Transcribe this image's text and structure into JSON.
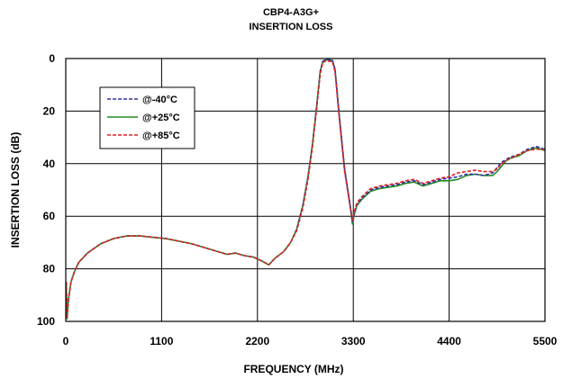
{
  "chart_data": {
    "type": "line",
    "title": "CBP4-A3G+",
    "subtitle": "INSERTION LOSS",
    "xlabel": "FREQUENCY (MHz)",
    "ylabel": "INSERTION LOSS (dB)",
    "xlim": [
      0,
      5500
    ],
    "ylim": [
      100,
      0
    ],
    "y_inverted": true,
    "x_ticks": [
      "0",
      "1100",
      "2200",
      "3300",
      "4400",
      "5500"
    ],
    "y_ticks": [
      "0",
      "20",
      "40",
      "60",
      "80",
      "100"
    ],
    "grid": true,
    "legend_position": "upper-left",
    "series": [
      {
        "name": "@-40°C",
        "color": "#3333aa",
        "dash": "dashed",
        "x": [
          5,
          15,
          30,
          60,
          100,
          150,
          250,
          400,
          550,
          700,
          850,
          1000,
          1150,
          1300,
          1450,
          1600,
          1750,
          1850,
          1950,
          2050,
          2150,
          2250,
          2330,
          2400,
          2500,
          2580,
          2650,
          2720,
          2780,
          2830,
          2880,
          2920,
          2950,
          2980,
          3020,
          3060,
          3090,
          3140,
          3200,
          3260,
          3290,
          3310,
          3340,
          3400,
          3500,
          3600,
          3700,
          3800,
          3900,
          4000,
          4100,
          4200,
          4300,
          4400,
          4500,
          4600,
          4700,
          4800,
          4900,
          4950,
          5000,
          5050,
          5100,
          5200,
          5300,
          5400,
          5500
        ],
        "y": [
          85,
          99,
          92,
          85,
          81,
          77.5,
          74,
          70.5,
          68.5,
          67.5,
          67.5,
          68,
          68.5,
          69.5,
          70.5,
          72,
          73.5,
          74.5,
          74,
          75,
          75.5,
          77,
          78.5,
          76,
          73.5,
          70,
          65,
          56,
          45,
          33,
          18,
          5,
          1,
          0.5,
          0.5,
          0.7,
          4,
          22,
          42,
          55,
          62,
          59,
          55.5,
          53,
          50,
          49,
          48.5,
          48,
          47,
          46.5,
          48,
          47,
          46,
          45.5,
          45,
          44,
          44,
          44.5,
          43.5,
          41.5,
          39.5,
          38.5,
          37.5,
          36.5,
          34.5,
          33.5,
          34.5
        ]
      },
      {
        "name": "@+25°C",
        "color": "#228b22",
        "dash": "solid",
        "x": [
          5,
          15,
          30,
          60,
          100,
          150,
          250,
          400,
          550,
          700,
          850,
          1000,
          1150,
          1300,
          1450,
          1600,
          1750,
          1850,
          1950,
          2050,
          2150,
          2250,
          2330,
          2400,
          2500,
          2580,
          2650,
          2720,
          2780,
          2830,
          2880,
          2920,
          2950,
          2980,
          3020,
          3060,
          3090,
          3140,
          3200,
          3260,
          3290,
          3310,
          3340,
          3400,
          3500,
          3600,
          3700,
          3800,
          3900,
          4000,
          4100,
          4200,
          4300,
          4400,
          4500,
          4600,
          4700,
          4800,
          4900,
          4950,
          5000,
          5050,
          5100,
          5200,
          5300,
          5400,
          5500
        ],
        "y": [
          85,
          99,
          92,
          85,
          81,
          77.5,
          74,
          70.5,
          68.5,
          67.5,
          67.5,
          68,
          68.5,
          69.5,
          70.5,
          72,
          73.5,
          74.5,
          74,
          75,
          75.5,
          77,
          78.5,
          76,
          73.5,
          70,
          65,
          56,
          45,
          33,
          18,
          5,
          1,
          0.5,
          0.5,
          0.7,
          4,
          22,
          42,
          55,
          63,
          59.5,
          56,
          53.5,
          50.5,
          49.5,
          49,
          48.5,
          47.5,
          47,
          48.5,
          47.5,
          46.5,
          46.5,
          46,
          44.5,
          44,
          44.5,
          44.5,
          43,
          41,
          39,
          38,
          37,
          35,
          34,
          35
        ]
      },
      {
        "name": "@+85°C",
        "color": "#dd2222",
        "dash": "dashed",
        "x": [
          5,
          15,
          30,
          60,
          100,
          150,
          250,
          400,
          550,
          700,
          850,
          1000,
          1150,
          1300,
          1450,
          1600,
          1750,
          1850,
          1950,
          2050,
          2150,
          2250,
          2330,
          2400,
          2500,
          2580,
          2650,
          2720,
          2780,
          2830,
          2880,
          2920,
          2950,
          2980,
          3020,
          3060,
          3090,
          3140,
          3200,
          3260,
          3290,
          3310,
          3340,
          3400,
          3500,
          3600,
          3700,
          3800,
          3900,
          4000,
          4100,
          4200,
          4300,
          4400,
          4500,
          4600,
          4700,
          4800,
          4900,
          4950,
          5000,
          5050,
          5100,
          5200,
          5300,
          5400,
          5500
        ],
        "y": [
          85,
          99,
          92,
          85,
          81,
          77.5,
          74,
          70.5,
          68.5,
          67.5,
          67.5,
          68,
          68.5,
          69.5,
          70.5,
          72,
          73.5,
          74.5,
          74,
          75,
          75.5,
          77,
          78.5,
          76,
          73.5,
          70,
          65.5,
          57,
          46,
          34,
          19,
          6,
          1.5,
          1,
          1,
          1.2,
          5,
          23,
          43,
          55.5,
          61.5,
          58.5,
          55,
          52.5,
          49.5,
          48.5,
          48,
          47.5,
          46.5,
          46,
          47.5,
          46.5,
          45.5,
          45,
          43.5,
          43,
          42.5,
          43,
          43,
          42,
          40,
          39,
          38,
          36.5,
          35,
          34.5,
          34.5
        ]
      }
    ]
  }
}
